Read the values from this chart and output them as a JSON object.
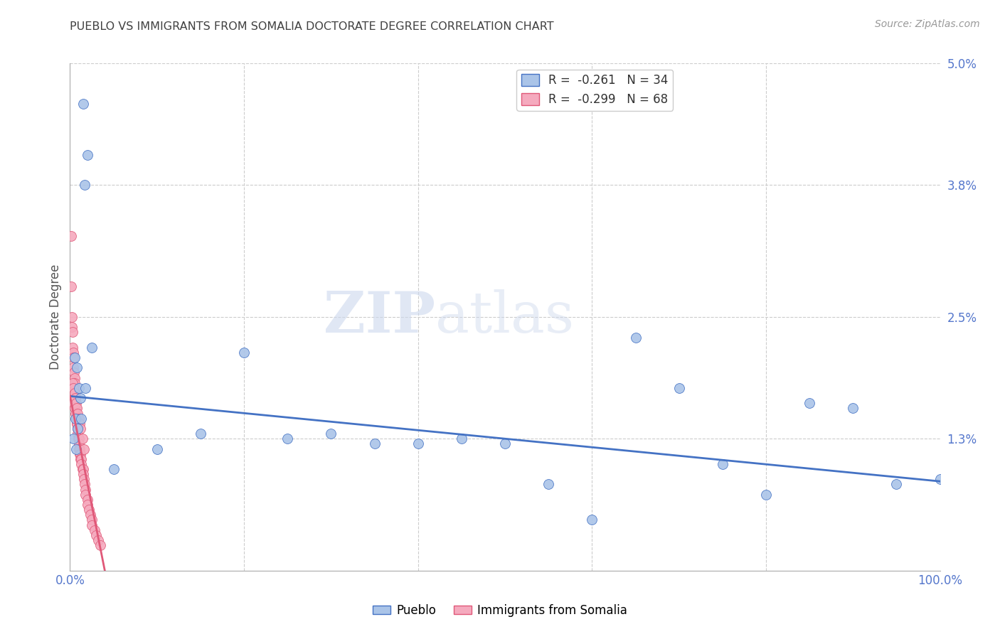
{
  "title": "PUEBLO VS IMMIGRANTS FROM SOMALIA DOCTORATE DEGREE CORRELATION CHART",
  "source": "Source: ZipAtlas.com",
  "ylabel": "Doctorate Degree",
  "legend_blue_r": "-0.261",
  "legend_blue_n": "34",
  "legend_pink_r": "-0.299",
  "legend_pink_n": "68",
  "pueblo_x": [
    1.5,
    2.0,
    1.7,
    2.5,
    0.5,
    0.8,
    1.0,
    1.2,
    0.6,
    0.9,
    1.8,
    0.4,
    0.7,
    1.3,
    20.0,
    25.0,
    30.0,
    35.0,
    40.0,
    45.0,
    50.0,
    55.0,
    60.0,
    65.0,
    70.0,
    75.0,
    80.0,
    85.0,
    90.0,
    95.0,
    100.0,
    10.0,
    15.0,
    5.0
  ],
  "pueblo_y": [
    4.6,
    4.1,
    3.8,
    2.2,
    2.1,
    2.0,
    1.8,
    1.7,
    1.5,
    1.4,
    1.8,
    1.3,
    1.2,
    1.5,
    2.15,
    1.3,
    1.35,
    1.25,
    1.25,
    1.3,
    1.25,
    0.85,
    0.5,
    2.3,
    1.8,
    1.05,
    0.75,
    1.65,
    1.6,
    0.85,
    0.9,
    1.2,
    1.35,
    1.0
  ],
  "somalia_x": [
    0.1,
    0.15,
    0.2,
    0.25,
    0.3,
    0.3,
    0.35,
    0.4,
    0.4,
    0.45,
    0.5,
    0.5,
    0.55,
    0.6,
    0.6,
    0.65,
    0.7,
    0.7,
    0.75,
    0.8,
    0.8,
    0.85,
    0.9,
    0.9,
    0.95,
    1.0,
    1.0,
    1.0,
    1.1,
    1.1,
    1.2,
    1.2,
    1.3,
    1.3,
    1.4,
    1.5,
    1.5,
    1.6,
    1.7,
    1.8,
    1.8,
    2.0,
    2.0,
    2.2,
    2.3,
    2.5,
    2.5,
    2.8,
    3.0,
    3.2,
    3.5,
    0.4,
    0.5,
    0.6,
    0.7,
    0.8,
    0.3,
    0.4,
    0.5,
    0.6,
    0.7,
    0.8,
    0.9,
    1.0,
    1.1,
    1.2,
    1.4,
    1.6
  ],
  "somalia_y": [
    3.3,
    2.8,
    2.5,
    2.4,
    2.35,
    2.2,
    2.15,
    2.1,
    2.0,
    1.95,
    1.9,
    1.85,
    1.8,
    1.75,
    1.7,
    1.65,
    1.6,
    1.55,
    1.5,
    1.5,
    1.45,
    1.4,
    1.4,
    1.35,
    1.3,
    1.3,
    1.25,
    1.2,
    1.2,
    1.15,
    1.15,
    1.1,
    1.1,
    1.05,
    1.0,
    1.0,
    0.95,
    0.9,
    0.85,
    0.8,
    0.75,
    0.7,
    0.65,
    0.6,
    0.55,
    0.5,
    0.45,
    0.4,
    0.35,
    0.3,
    0.25,
    1.65,
    1.6,
    1.55,
    1.5,
    1.45,
    1.85,
    1.8,
    1.75,
    1.7,
    1.65,
    1.6,
    1.55,
    1.5,
    1.45,
    1.4,
    1.3,
    1.2
  ],
  "blue_color": "#aac4e8",
  "pink_color": "#f5aabe",
  "blue_line_color": "#4472c4",
  "pink_line_color": "#e05878",
  "background_color": "#ffffff",
  "grid_color": "#cccccc",
  "title_color": "#404040",
  "axis_label_color": "#5577cc",
  "watermark_zip": "ZIP",
  "watermark_atlas": "atlas",
  "xlim": [
    0,
    100
  ],
  "ylim": [
    0,
    5.0
  ],
  "blue_line_x0": 0,
  "blue_line_x1": 100,
  "blue_line_y0": 1.72,
  "blue_line_y1": 0.88,
  "pink_line_x0": 0,
  "pink_line_x1": 4.0,
  "pink_line_y0": 1.72,
  "pink_line_y1": 0.0
}
